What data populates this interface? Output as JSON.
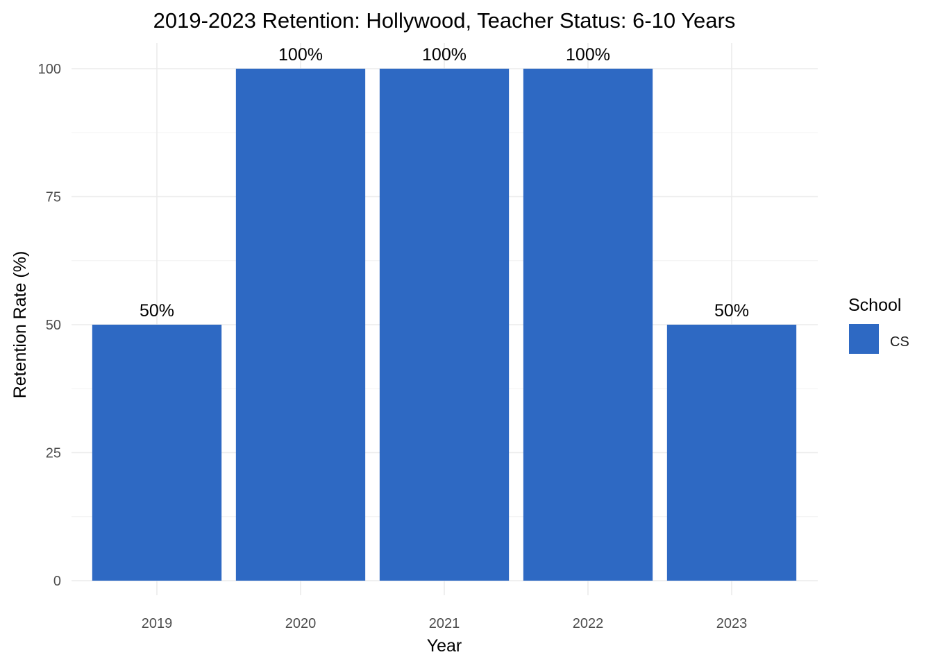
{
  "chart_data": {
    "type": "bar",
    "title": "2019-2023 Retention: Hollywood, Teacher Status: 6-10 Years",
    "xlabel": "Year",
    "ylabel": "Retention Rate (%)",
    "categories": [
      "2019",
      "2020",
      "2021",
      "2022",
      "2023"
    ],
    "series": [
      {
        "name": "CS",
        "values": [
          50,
          100,
          100,
          100,
          50
        ]
      }
    ],
    "data_labels": [
      "50%",
      "100%",
      "100%",
      "100%",
      "50%"
    ],
    "ylim": [
      0,
      100
    ],
    "y_ticks": [
      0,
      25,
      50,
      75,
      100
    ],
    "y_tick_labels": [
      "0",
      "25",
      "50",
      "75",
      "100"
    ],
    "grid": true,
    "legend": {
      "title": "School",
      "position": "right"
    },
    "colors": {
      "CS": "#2E69C3"
    }
  }
}
